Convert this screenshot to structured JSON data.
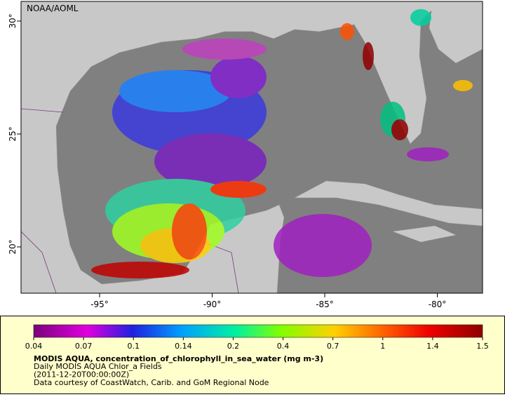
{
  "map": {
    "credit": "NOAA/AOML",
    "lon_ticks": [
      {
        "value": -95,
        "label": "-95°"
      },
      {
        "value": -90,
        "label": "-90°"
      },
      {
        "value": -85,
        "label": "-85°"
      },
      {
        "value": -80,
        "label": "-80°"
      }
    ],
    "lat_ticks": [
      {
        "value": 30,
        "label": "30°"
      },
      {
        "value": 25,
        "label": "25°"
      },
      {
        "value": 20,
        "label": "20°"
      }
    ]
  },
  "colorbar": {
    "ticks": [
      0.04,
      0.07,
      0.1,
      0.14,
      0.2,
      0.4,
      0.7,
      1,
      1.4,
      1.5
    ]
  },
  "caption": {
    "title": "MODIS AQUA, concentration_of_chlorophyll_in_sea_water (mg m-3)",
    "lines": [
      "Daily MODIS AQUA Chlor_a Fields",
      "(2011-12-20T00:00:00Z)",
      "Data courtesy of CoastWatch, Carib. and GoM Regional Node"
    ]
  }
}
